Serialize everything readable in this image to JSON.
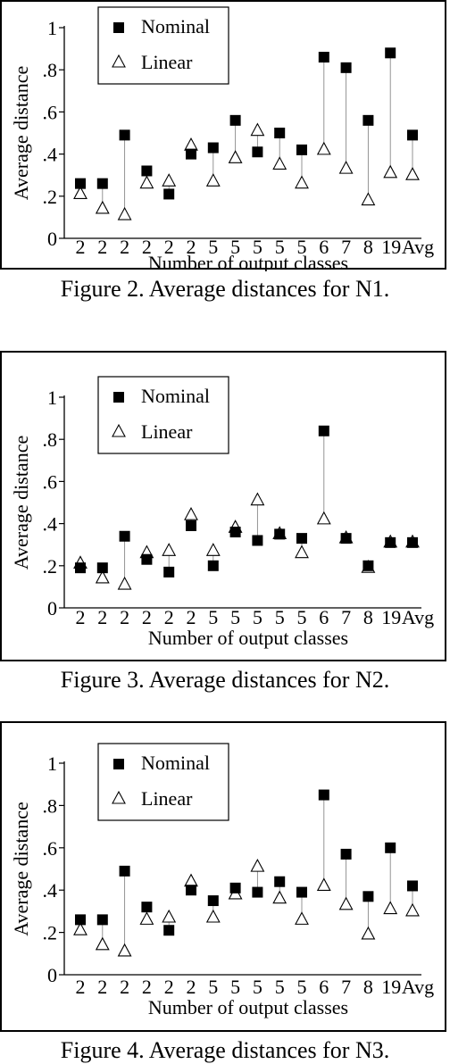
{
  "chart_data": [
    {
      "type": "scatter",
      "caption": "Figure 2.  Average distances for N1.",
      "xlabel": "Number of output classes",
      "ylabel": "Average distance",
      "ylim": [
        0,
        1
      ],
      "yticks": [
        "0",
        ".2",
        ".4",
        ".6",
        ".8",
        "1"
      ],
      "categories": [
        "2",
        "2",
        "2",
        "2",
        "2",
        "2",
        "5",
        "5",
        "5",
        "5",
        "5",
        "6",
        "7",
        "8",
        "19",
        "Avg"
      ],
      "legend_position": "top-left",
      "grid": false,
      "series": [
        {
          "name": "Nominal",
          "marker": "filled-square",
          "values": [
            0.26,
            0.26,
            0.49,
            0.32,
            0.21,
            0.4,
            0.43,
            0.56,
            0.41,
            0.5,
            0.42,
            0.86,
            0.81,
            0.56,
            0.88,
            0.49
          ]
        },
        {
          "name": "Linear",
          "marker": "open-triangle",
          "values": [
            0.21,
            0.14,
            0.11,
            0.26,
            0.27,
            0.44,
            0.27,
            0.38,
            0.51,
            0.35,
            0.26,
            0.42,
            0.33,
            0.18,
            0.31,
            0.3
          ]
        }
      ]
    },
    {
      "type": "scatter",
      "caption": "Figure 3. Average distances for N2.",
      "xlabel": "Number of output classes",
      "ylabel": "Average distance",
      "ylim": [
        0,
        1
      ],
      "yticks": [
        "0",
        ".2",
        ".4",
        ".6",
        ".8",
        "1"
      ],
      "categories": [
        "2",
        "2",
        "2",
        "2",
        "2",
        "2",
        "5",
        "5",
        "5",
        "5",
        "5",
        "6",
        "7",
        "8",
        "19",
        "Avg"
      ],
      "legend_position": "top-left",
      "grid": false,
      "series": [
        {
          "name": "Nominal",
          "marker": "filled-square",
          "values": [
            0.19,
            0.19,
            0.34,
            0.23,
            0.17,
            0.39,
            0.2,
            0.36,
            0.32,
            0.35,
            0.33,
            0.84,
            0.33,
            0.2,
            0.31,
            0.31
          ]
        },
        {
          "name": "Linear",
          "marker": "open-triangle",
          "values": [
            0.21,
            0.14,
            0.11,
            0.26,
            0.27,
            0.44,
            0.27,
            0.38,
            0.51,
            0.35,
            0.26,
            0.42,
            0.33,
            0.19,
            0.31,
            0.31
          ]
        }
      ]
    },
    {
      "type": "scatter",
      "caption": "Figure 4. Average distances for N3.",
      "xlabel": "Number of output classes",
      "ylabel": "Average distance",
      "ylim": [
        0,
        1
      ],
      "yticks": [
        "0",
        ".2",
        ".4",
        ".6",
        ".8",
        "1"
      ],
      "categories": [
        "2",
        "2",
        "2",
        "2",
        "2",
        "2",
        "5",
        "5",
        "5",
        "5",
        "5",
        "6",
        "7",
        "8",
        "19",
        "Avg"
      ],
      "legend_position": "top-left",
      "grid": false,
      "series": [
        {
          "name": "Nominal",
          "marker": "filled-square",
          "values": [
            0.26,
            0.26,
            0.49,
            0.32,
            0.21,
            0.4,
            0.35,
            0.41,
            0.39,
            0.44,
            0.39,
            0.85,
            0.57,
            0.37,
            0.6,
            0.42
          ]
        },
        {
          "name": "Linear",
          "marker": "open-triangle",
          "values": [
            0.21,
            0.14,
            0.11,
            0.26,
            0.27,
            0.44,
            0.27,
            0.38,
            0.51,
            0.36,
            0.26,
            0.42,
            0.33,
            0.19,
            0.31,
            0.3
          ]
        }
      ]
    }
  ]
}
